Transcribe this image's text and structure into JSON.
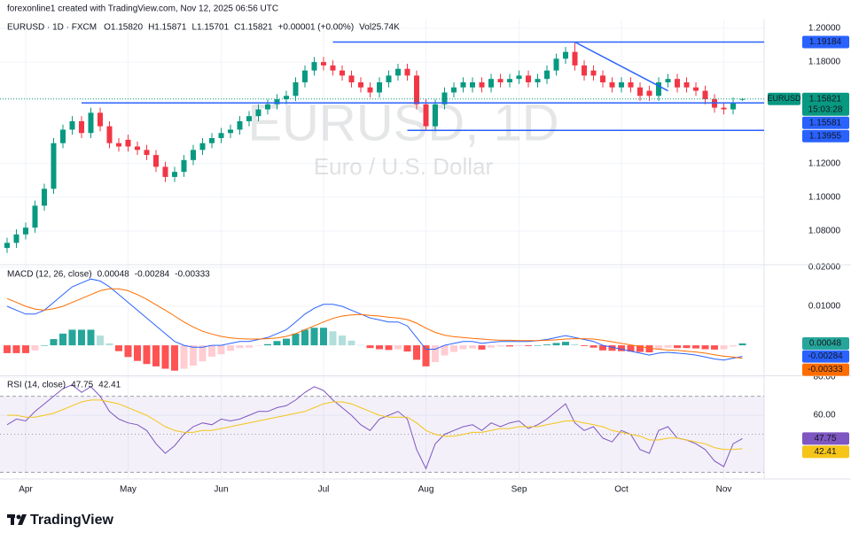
{
  "page": {
    "credit": "forexonline1 created with TradingView.com, Nov 12, 2025 06:56 UTC",
    "brand": "TradingView"
  },
  "chart_data": [
    {
      "type": "candlestick",
      "title": "EURUSD · 1D · FXCM",
      "header": [
        "O1.15820",
        "H1.15871",
        "L1.15701",
        "C1.15821",
        "+0.00001 (+0.00%)",
        "Vol25.74K"
      ],
      "watermark": "EURUSD, 1D",
      "watermark_subtitle": "Euro / U.S. Dollar",
      "up_color": "#089981",
      "down_color": "#f23645",
      "level_color": "#2962ff",
      "xlim": [
        -0.76,
        81.33
      ],
      "xticks": [
        {
          "value": 2,
          "label": "Apr"
        },
        {
          "value": 13,
          "label": "May"
        },
        {
          "value": 23,
          "label": "Jun"
        },
        {
          "value": 34,
          "label": "Jul"
        },
        {
          "value": 45,
          "label": "Aug"
        },
        {
          "value": 55,
          "label": "Sep"
        },
        {
          "value": 66,
          "label": "Oct"
        },
        {
          "value": 77,
          "label": "Nov"
        }
      ],
      "ylim": [
        1.0606,
        1.2052
      ],
      "yticks": [
        {
          "value": 1.08,
          "label": "1.08000"
        },
        {
          "value": 1.1,
          "label": "1.10000"
        },
        {
          "value": 1.12,
          "label": "1.12000"
        },
        {
          "value": 1.18,
          "label": "1.18000"
        },
        {
          "value": 1.2,
          "label": "1.20000"
        }
      ],
      "open": [
        1.07,
        1.073,
        1.078,
        1.082,
        1.095,
        1.105,
        1.132,
        1.14,
        1.145,
        1.138,
        1.15,
        1.142,
        1.132,
        1.134,
        1.13,
        1.128,
        1.125,
        1.118,
        1.112,
        1.115,
        1.122,
        1.128,
        1.132,
        1.135,
        1.138,
        1.14,
        1.145,
        1.148,
        1.152,
        1.155,
        1.158,
        1.16,
        1.168,
        1.175,
        1.18,
        1.178,
        1.175,
        1.172,
        1.168,
        1.165,
        1.162,
        1.168,
        1.172,
        1.176,
        1.172,
        1.155,
        1.142,
        1.155,
        1.162,
        1.165,
        1.165,
        1.168,
        1.165,
        1.17,
        1.168,
        1.17,
        1.172,
        1.168,
        1.17,
        1.175,
        1.182,
        1.186,
        1.178,
        1.175,
        1.172,
        1.168,
        1.165,
        1.168,
        1.165,
        1.163,
        1.16,
        1.168,
        1.17,
        1.168,
        1.165,
        1.163,
        1.158,
        1.153,
        1.152,
        1.1582
      ],
      "high": [
        1.076,
        1.081,
        1.085,
        1.098,
        1.108,
        1.135,
        1.143,
        1.148,
        1.148,
        1.153,
        1.153,
        1.145,
        1.135,
        1.137,
        1.133,
        1.131,
        1.128,
        1.121,
        1.118,
        1.125,
        1.131,
        1.135,
        1.138,
        1.141,
        1.143,
        1.148,
        1.151,
        1.155,
        1.158,
        1.161,
        1.163,
        1.171,
        1.178,
        1.183,
        1.183,
        1.181,
        1.178,
        1.175,
        1.171,
        1.168,
        1.171,
        1.175,
        1.179,
        1.179,
        1.175,
        1.158,
        1.158,
        1.165,
        1.168,
        1.171,
        1.171,
        1.171,
        1.173,
        1.173,
        1.173,
        1.175,
        1.175,
        1.173,
        1.178,
        1.185,
        1.189,
        1.1918,
        1.181,
        1.178,
        1.175,
        1.171,
        1.171,
        1.171,
        1.168,
        1.166,
        1.171,
        1.173,
        1.173,
        1.171,
        1.168,
        1.166,
        1.161,
        1.156,
        1.159,
        1.15871
      ],
      "low": [
        1.067,
        1.07,
        1.075,
        1.079,
        1.092,
        1.102,
        1.129,
        1.137,
        1.135,
        1.135,
        1.139,
        1.129,
        1.127,
        1.127,
        1.125,
        1.122,
        1.115,
        1.109,
        1.109,
        1.112,
        1.119,
        1.125,
        1.129,
        1.132,
        1.135,
        1.137,
        1.142,
        1.145,
        1.149,
        1.152,
        1.155,
        1.157,
        1.165,
        1.172,
        1.175,
        1.172,
        1.169,
        1.165,
        1.162,
        1.159,
        1.159,
        1.165,
        1.169,
        1.169,
        1.152,
        1.1395,
        1.139,
        1.152,
        1.159,
        1.162,
        1.162,
        1.162,
        1.162,
        1.165,
        1.165,
        1.167,
        1.165,
        1.165,
        1.167,
        1.172,
        1.179,
        1.175,
        1.169,
        1.169,
        1.165,
        1.162,
        1.162,
        1.162,
        1.157,
        1.157,
        1.157,
        1.165,
        1.162,
        1.162,
        1.16,
        1.155,
        1.15,
        1.149,
        1.149,
        1.15701
      ],
      "close": [
        1.073,
        1.078,
        1.082,
        1.095,
        1.105,
        1.132,
        1.14,
        1.145,
        1.138,
        1.15,
        1.142,
        1.132,
        1.13,
        1.13,
        1.128,
        1.125,
        1.118,
        1.112,
        1.115,
        1.122,
        1.128,
        1.132,
        1.135,
        1.138,
        1.14,
        1.145,
        1.148,
        1.152,
        1.155,
        1.158,
        1.16,
        1.168,
        1.175,
        1.18,
        1.178,
        1.175,
        1.172,
        1.168,
        1.165,
        1.162,
        1.168,
        1.172,
        1.176,
        1.172,
        1.155,
        1.142,
        1.155,
        1.162,
        1.165,
        1.168,
        1.168,
        1.165,
        1.17,
        1.168,
        1.17,
        1.172,
        1.168,
        1.17,
        1.175,
        1.182,
        1.186,
        1.178,
        1.172,
        1.172,
        1.168,
        1.165,
        1.168,
        1.165,
        1.16,
        1.16,
        1.168,
        1.17,
        1.165,
        1.165,
        1.163,
        1.158,
        1.153,
        1.152,
        1.156,
        1.15821
      ],
      "levels": [
        {
          "value": 1.19184,
          "label": "1.19184",
          "from": 35
        },
        {
          "value": 1.15581,
          "label": "1.15581",
          "from": 8
        },
        {
          "value": 1.13955,
          "label": "1.13955",
          "from": 43
        }
      ],
      "trendline": {
        "x": [
          61,
          71
        ],
        "values": [
          1.19184,
          1.163
        ]
      },
      "last_price": {
        "name": "EURUSD",
        "value": 1.15821,
        "label": "1.15821",
        "countdown": "15:03:28"
      }
    },
    {
      "type": "macd",
      "title": "MACD (12, 26, close)",
      "ylim": [
        -0.0077,
        0.02045
      ],
      "yticks": [
        {
          "value": 0.01,
          "label": "0.01000"
        },
        {
          "value": 0.02,
          "label": "0.02000"
        }
      ],
      "histogram_colors": [
        "#26a69a",
        "#b2dfdb",
        "#ffcdd2",
        "#ff5252"
      ],
      "series": [
        {
          "style": "histogram",
          "color": "#26a69a",
          "last_label": "0.00048",
          "values": [
            -0.002,
            -0.002,
            -0.002,
            -0.0013,
            0,
            0.0016,
            0.003,
            0.004,
            0.004,
            0.004,
            0.0025,
            0.0005,
            -0.0015,
            -0.003,
            -0.004,
            -0.0048,
            -0.0054,
            -0.006,
            -0.0065,
            -0.006,
            -0.0052,
            -0.0041,
            -0.0029,
            -0.0023,
            -0.0014,
            -0.0007,
            -0.0006,
            -0.0001,
            0.0003,
            0.0011,
            0.0017,
            0.003,
            0.004,
            0.0045,
            0.0045,
            0.0036,
            0.0025,
            0.0012,
            0.0001,
            -0.0007,
            -0.001,
            -0.0012,
            -0.001,
            -0.0016,
            -0.0037,
            -0.0054,
            -0.0043,
            -0.0026,
            -0.0017,
            -0.001,
            -0.0008,
            -0.0011,
            -0.0006,
            -0.0003,
            -0.0003,
            -0.0002,
            -0.0002,
            0,
            0.0002,
            0.0006,
            0.0009,
            0.0003,
            -0.0002,
            -0.0006,
            -0.0013,
            -0.0014,
            -0.0015,
            -0.0016,
            -0.0017,
            -0.0018,
            -0.001,
            -0.0006,
            -0.0007,
            -0.0007,
            -0.0008,
            -0.001,
            -0.0011,
            -0.001,
            -0.0003,
            0.00048
          ]
        },
        {
          "style": "line",
          "color": "#2962ff",
          "last_label": "-0.00284",
          "values": [
            0.01,
            0.009,
            0.008,
            0.008,
            0.009,
            0.011,
            0.013,
            0.015,
            0.016,
            0.017,
            0.0165,
            0.015,
            0.013,
            0.011,
            0.009,
            0.007,
            0.005,
            0.003,
            0.001,
            0.0,
            -0.0005,
            -0.0005,
            0.0,
            0.0,
            0.0005,
            0.001,
            0.001,
            0.0015,
            0.002,
            0.003,
            0.004,
            0.006,
            0.008,
            0.0095,
            0.0105,
            0.0105,
            0.01,
            0.009,
            0.008,
            0.007,
            0.0065,
            0.006,
            0.006,
            0.005,
            0.002,
            -0.001,
            -0.001,
            0.0,
            0.0005,
            0.001,
            0.001,
            0.0005,
            0.0008,
            0.001,
            0.001,
            0.001,
            0.001,
            0.0012,
            0.0015,
            0.002,
            0.0025,
            0.002,
            0.0015,
            0.001,
            0.0,
            -0.0005,
            -0.001,
            -0.0015,
            -0.002,
            -0.0025,
            -0.002,
            -0.0018,
            -0.002,
            -0.0022,
            -0.0025,
            -0.003,
            -0.0035,
            -0.0038,
            -0.0033,
            -0.00284
          ]
        },
        {
          "style": "line",
          "color": "#ff6d00",
          "last_label": "-0.00333",
          "values": [
            0.012,
            0.011,
            0.01,
            0.0093,
            0.009,
            0.0094,
            0.01,
            0.011,
            0.012,
            0.013,
            0.014,
            0.0145,
            0.0145,
            0.014,
            0.013,
            0.0118,
            0.0104,
            0.009,
            0.0075,
            0.006,
            0.0047,
            0.0036,
            0.0029,
            0.0023,
            0.0019,
            0.0017,
            0.0016,
            0.0016,
            0.0017,
            0.0019,
            0.0023,
            0.003,
            0.004,
            0.005,
            0.006,
            0.0069,
            0.0075,
            0.0078,
            0.0079,
            0.0077,
            0.0075,
            0.0072,
            0.007,
            0.0066,
            0.0057,
            0.0044,
            0.0033,
            0.0026,
            0.0022,
            0.002,
            0.0018,
            0.0016,
            0.0014,
            0.0013,
            0.0013,
            0.0012,
            0.0012,
            0.0012,
            0.0013,
            0.0014,
            0.0016,
            0.0017,
            0.0017,
            0.0016,
            0.0013,
            0.0009,
            0.0005,
            0.0001,
            -0.0003,
            -0.0007,
            -0.001,
            -0.0012,
            -0.0013,
            -0.0015,
            -0.0017,
            -0.002,
            -0.0024,
            -0.0028,
            -0.003,
            -0.00333
          ]
        }
      ]
    },
    {
      "type": "rsi",
      "title": "RSI (14, close)",
      "ylim": [
        27,
        80.5
      ],
      "yticks": [
        {
          "value": 60,
          "label": "60.00"
        },
        {
          "value": 80,
          "label": "80.00"
        }
      ],
      "levels": [
        30,
        50,
        70
      ],
      "band_color": "#7e57c2",
      "series": [
        {
          "style": "line",
          "color": "#7e57c2",
          "last_label": "47.75",
          "values": [
            55,
            58,
            57,
            62,
            66,
            70,
            74,
            76,
            72,
            75,
            70,
            62,
            58,
            56,
            55,
            52,
            45,
            40,
            44,
            50,
            54,
            56,
            55,
            58,
            57,
            58,
            60,
            62,
            62,
            64,
            65,
            68,
            72,
            75,
            73,
            68,
            64,
            60,
            55,
            52,
            58,
            60,
            62,
            58,
            42,
            32,
            45,
            50,
            52,
            54,
            55,
            52,
            56,
            54,
            56,
            57,
            53,
            55,
            58,
            62,
            66,
            56,
            52,
            54,
            48,
            46,
            52,
            50,
            42,
            40,
            52,
            54,
            48,
            47,
            45,
            42,
            36,
            33,
            45,
            47.75
          ]
        },
        {
          "style": "line",
          "color": "#f5c518",
          "last_label": "42.41",
          "values": [
            60,
            60,
            59,
            59,
            60,
            61,
            63,
            65,
            67,
            68,
            68,
            67,
            66,
            64,
            62,
            60,
            57,
            54,
            52,
            51,
            51,
            52,
            52,
            53,
            54,
            55,
            56,
            57,
            58,
            59,
            60,
            61,
            62,
            64,
            66,
            67,
            67,
            66,
            64,
            62,
            60,
            59,
            59,
            59,
            56,
            52,
            50,
            49,
            49,
            50,
            51,
            51,
            52,
            53,
            53,
            54,
            54,
            54,
            55,
            56,
            57,
            57,
            56,
            55,
            54,
            52,
            51,
            50,
            49,
            47,
            47,
            48,
            48,
            47,
            46,
            45,
            43,
            42,
            42,
            42.41
          ]
        }
      ]
    }
  ]
}
